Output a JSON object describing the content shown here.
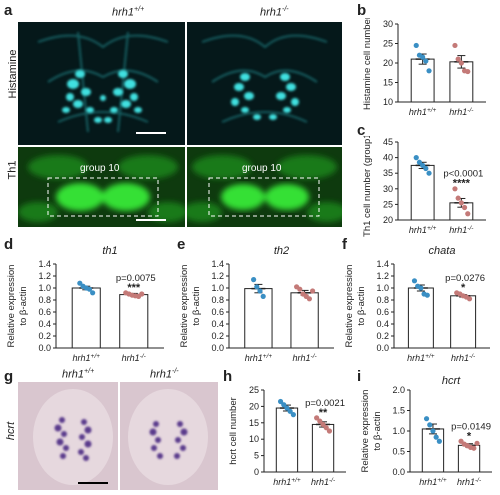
{
  "panel_labels": [
    "a",
    "b",
    "c",
    "d",
    "e",
    "f",
    "g",
    "h",
    "i"
  ],
  "genotypes": {
    "wt": "hrh1",
    "wt_sup": "+/+",
    "ko": "hrh1",
    "ko_sup": "-/-"
  },
  "panel_a": {
    "row_labels": [
      "Histamine",
      "Th1"
    ],
    "group_label": "group 10"
  },
  "panel_g": {
    "row_label": "hcrt"
  },
  "colors": {
    "wt_dot": "#3a8fc4",
    "ko_dot": "#c47a78",
    "histamine": "#3fe0e0",
    "th1": "#34e034",
    "ish_bg": "#d9c6cf",
    "ish_stain": "#5a3a8c"
  },
  "chart_data": [
    {
      "panel": "b",
      "type": "bar",
      "categories": [
        "hrh1+/+",
        "hrh1-/-"
      ],
      "values": [
        21,
        20.3
      ],
      "errors": [
        1.3,
        1.6
      ],
      "points": [
        [
          24.5,
          22,
          21.5,
          20.5,
          18
        ],
        [
          24.5,
          21,
          20,
          18,
          17.8
        ]
      ],
      "ylabel": "Histamine cell number",
      "ylim": [
        10,
        30
      ],
      "yticks": [
        10,
        15,
        20,
        25,
        30
      ],
      "annotation_p": "",
      "annotation_stars": ""
    },
    {
      "panel": "c",
      "type": "bar",
      "categories": [
        "hrh1+/+",
        "hrh1-/-"
      ],
      "values": [
        37.5,
        25.5
      ],
      "errors": [
        1.0,
        1.4
      ],
      "points": [
        [
          40,
          38.5,
          37.5,
          36.5,
          35
        ],
        [
          30,
          27,
          25.5,
          24,
          22
        ]
      ],
      "ylabel": "Th1 cell number (group10)",
      "ylim": [
        20,
        45
      ],
      "yticks": [
        20,
        25,
        30,
        35,
        40,
        45
      ],
      "annotation_p": "p<0.0001",
      "annotation_stars": "****"
    },
    {
      "panel": "d",
      "type": "bar",
      "categories": [
        "hrh1+/+",
        "hrh1-/-"
      ],
      "values": [
        1.0,
        0.89
      ],
      "errors": [
        0.03,
        0.02
      ],
      "points": [
        [
          1.08,
          1.03,
          1.0,
          0.98,
          0.92
        ],
        [
          0.92,
          0.9,
          0.88,
          0.87,
          0.86,
          0.9
        ]
      ],
      "ylabel": "Relative expression",
      "ylabel2": "to β-actin",
      "ylim": [
        0.0,
        1.4
      ],
      "yticks": [
        0.0,
        0.2,
        0.4,
        0.6,
        0.8,
        1.0,
        1.2,
        1.4
      ],
      "gene": "th1",
      "annotation_p": "p=0.0075",
      "annotation_stars": "***"
    },
    {
      "panel": "e",
      "type": "bar",
      "categories": [
        "hrh1+/+",
        "hrh1-/-"
      ],
      "values": [
        0.99,
        0.92
      ],
      "errors": [
        0.07,
        0.04
      ],
      "points": [
        [
          1.14,
          1.02,
          0.95,
          0.86
        ],
        [
          1.02,
          0.98,
          0.9,
          0.86,
          0.82,
          0.95
        ]
      ],
      "ylabel": "Relative expression",
      "ylabel2": "to β-actin",
      "ylim": [
        0.0,
        1.4
      ],
      "yticks": [
        0.0,
        0.2,
        0.4,
        0.6,
        0.8,
        1.0,
        1.2,
        1.4
      ],
      "gene": "th2",
      "annotation_p": "",
      "annotation_stars": ""
    },
    {
      "panel": "f",
      "type": "bar",
      "categories": [
        "hrh1+/+",
        "hrh1-/-"
      ],
      "values": [
        1.0,
        0.87
      ],
      "errors": [
        0.05,
        0.02
      ],
      "points": [
        [
          1.12,
          1.03,
          1.0,
          0.9,
          0.88
        ],
        [
          0.92,
          0.9,
          0.87,
          0.85,
          0.82
        ]
      ],
      "ylabel": "Relative expression",
      "ylabel2": "to β-actin",
      "ylim": [
        0.0,
        1.4
      ],
      "yticks": [
        0.0,
        0.2,
        0.4,
        0.6,
        0.8,
        1.0,
        1.2,
        1.4
      ],
      "gene": "chata",
      "annotation_p": "p=0.0276",
      "annotation_stars": "*"
    },
    {
      "panel": "h",
      "type": "bar",
      "categories": [
        "hrh1+/+",
        "hrh1-/-"
      ],
      "values": [
        19.5,
        14.5
      ],
      "errors": [
        0.9,
        0.8
      ],
      "points": [
        [
          21.5,
          20.5,
          19.5,
          18.5,
          17.5
        ],
        [
          16.5,
          15.5,
          14.5,
          13.5,
          12.5
        ]
      ],
      "ylabel": "hcrt cell number",
      "ylim": [
        0,
        25
      ],
      "yticks": [
        0,
        5,
        10,
        15,
        20,
        25
      ],
      "annotation_p": "p=0.0021",
      "annotation_stars": "**"
    },
    {
      "panel": "i",
      "type": "bar",
      "categories": [
        "hrh1+/+",
        "hrh1-/-"
      ],
      "values": [
        1.05,
        0.65
      ],
      "errors": [
        0.12,
        0.04
      ],
      "points": [
        [
          1.3,
          1.15,
          1.0,
          0.85,
          0.75
        ],
        [
          0.75,
          0.68,
          0.64,
          0.6,
          0.58,
          0.7
        ]
      ],
      "ylabel": "Relative expression",
      "ylabel2": "to β-actin",
      "ylim": [
        0.0,
        2.0
      ],
      "yticks": [
        0.0,
        0.5,
        1.0,
        1.5,
        2.0
      ],
      "gene": "hcrt",
      "annotation_p": "p=0.0149",
      "annotation_stars": "*"
    }
  ]
}
